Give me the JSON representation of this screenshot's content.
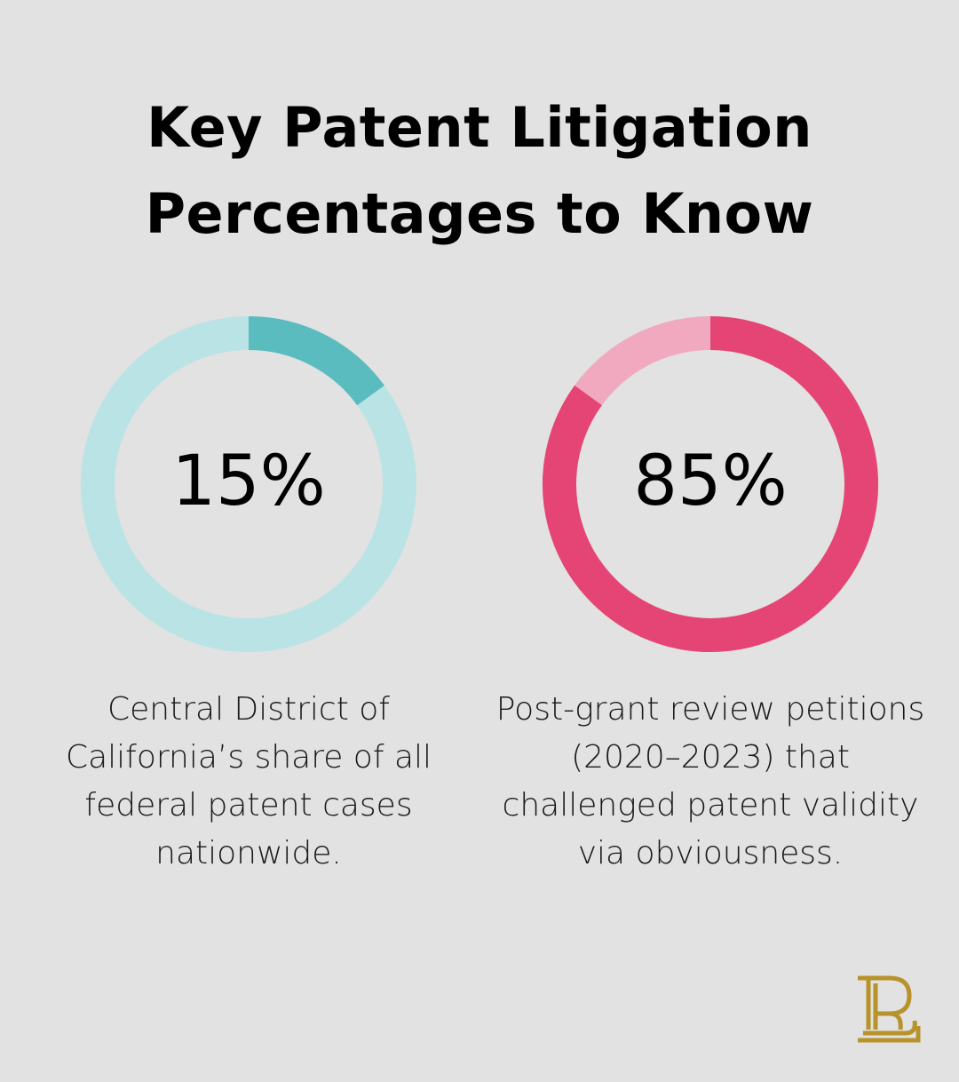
{
  "title_lines": [
    "Key Patent Litigation",
    "Percentages to Know"
  ],
  "chart_data": [
    {
      "type": "pie",
      "style": "donut",
      "value": 15,
      "label": "15%",
      "caption": "Central District of California’s share of all federal patent cases nationwide.",
      "caption_lines": [
        "Central District of",
        "California’s share of all",
        "federal patent cases",
        "nationwide."
      ],
      "colors": {
        "filled": "#5bbcc0",
        "track": "#bae3e5"
      }
    },
    {
      "type": "pie",
      "style": "donut",
      "value": 85,
      "label": "85%",
      "caption": "Post-grant review petitions (2020–2023) that challenged patent validity via obviousness.",
      "caption_lines": [
        "Post-grant review petitions",
        "(2020–2023) that",
        "challenged patent validity",
        "via obviousness."
      ],
      "colors": {
        "filled": "#e44575",
        "track": "#f1a9bf"
      }
    }
  ],
  "logo": {
    "icon": "pl-monogram-icon",
    "color": "#b8922a"
  }
}
